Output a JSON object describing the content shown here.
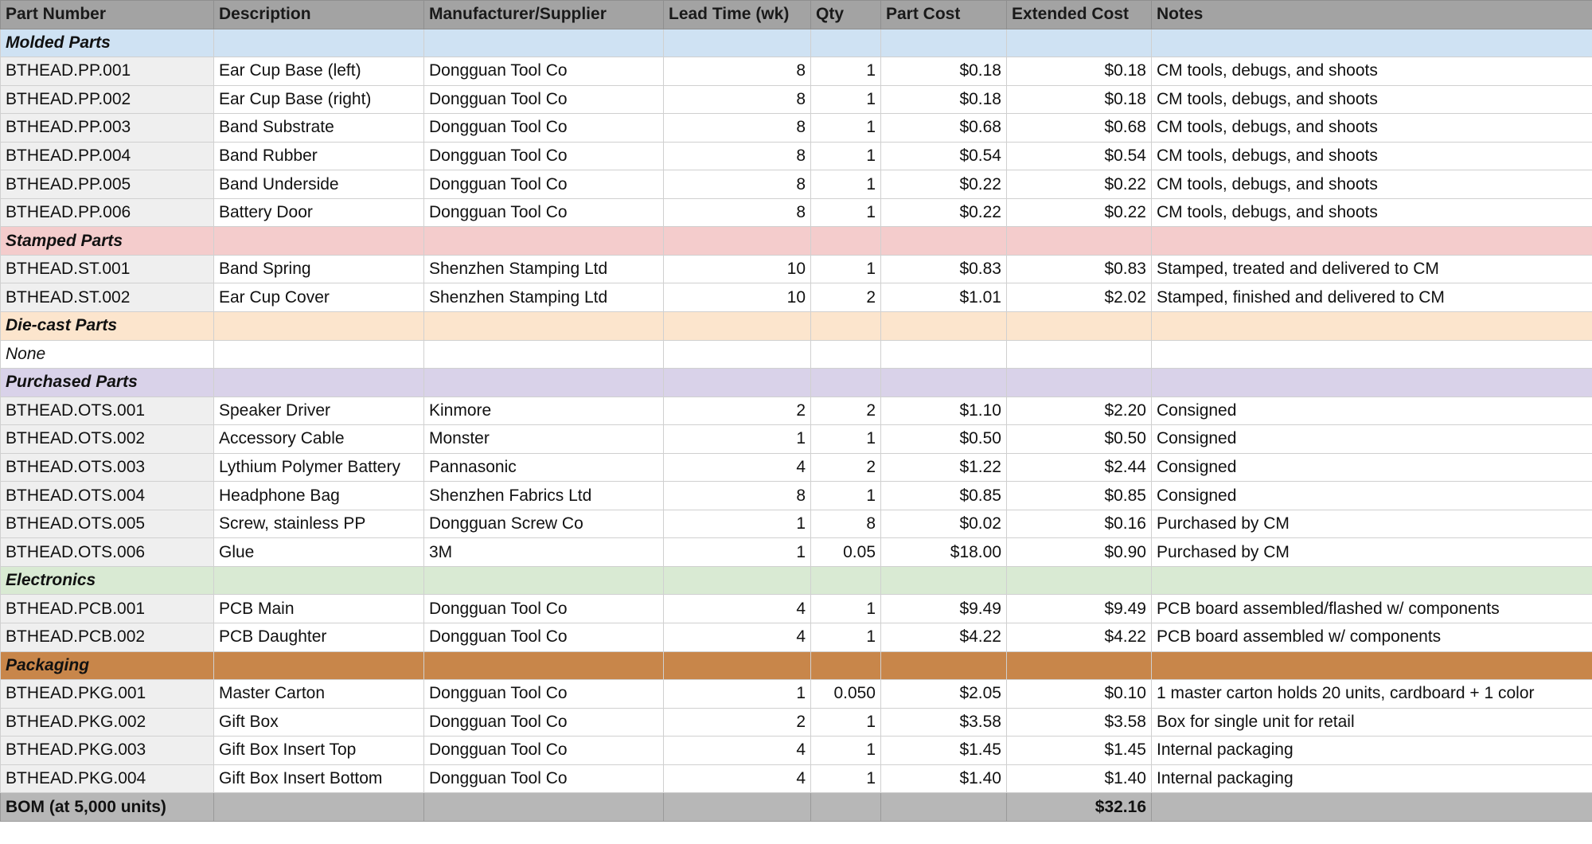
{
  "table": {
    "header": [
      "Part Number",
      "Description",
      "Manufacturer/Supplier",
      "Lead Time (wk)",
      "Qty",
      "Part Cost",
      "Extended Cost",
      "Notes"
    ],
    "sections": [
      {
        "title": "Molded Parts",
        "color": "#cfe2f3",
        "rows": [
          [
            "BTHEAD.PP.001",
            "Ear Cup Base (left)",
            "Dongguan Tool Co",
            "8",
            "1",
            "$0.18",
            "$0.18",
            "CM tools, debugs, and shoots"
          ],
          [
            "BTHEAD.PP.002",
            "Ear Cup Base (right)",
            "Dongguan Tool Co",
            "8",
            "1",
            "$0.18",
            "$0.18",
            "CM tools, debugs, and shoots"
          ],
          [
            "BTHEAD.PP.003",
            "Band Substrate",
            "Dongguan Tool Co",
            "8",
            "1",
            "$0.68",
            "$0.68",
            "CM tools, debugs, and shoots"
          ],
          [
            "BTHEAD.PP.004",
            "Band Rubber",
            "Dongguan Tool Co",
            "8",
            "1",
            "$0.54",
            "$0.54",
            "CM tools, debugs, and shoots"
          ],
          [
            "BTHEAD.PP.005",
            "Band Underside",
            "Dongguan Tool Co",
            "8",
            "1",
            "$0.22",
            "$0.22",
            "CM tools, debugs, and shoots"
          ],
          [
            "BTHEAD.PP.006",
            "Battery Door",
            "Dongguan Tool Co",
            "8",
            "1",
            "$0.22",
            "$0.22",
            "CM tools, debugs, and shoots"
          ]
        ]
      },
      {
        "title": "Stamped Parts",
        "color": "#f4cccc",
        "rows": [
          [
            "BTHEAD.ST.001",
            "Band Spring",
            "Shenzhen Stamping Ltd",
            "10",
            "1",
            "$0.83",
            "$0.83",
            "Stamped, treated and delivered to CM"
          ],
          [
            "BTHEAD.ST.002",
            "Ear Cup Cover",
            "Shenzhen Stamping Ltd",
            "10",
            "2",
            "$1.01",
            "$2.02",
            "Stamped, finished and delivered to CM"
          ]
        ]
      },
      {
        "title": "Die-cast Parts",
        "color": "#fce5cd",
        "rows": [
          [
            "None"
          ]
        ]
      },
      {
        "title": "Purchased Parts",
        "color": "#d9d2e9",
        "rows": [
          [
            "BTHEAD.OTS.001",
            "Speaker Driver",
            "Kinmore",
            "2",
            "2",
            "$1.10",
            "$2.20",
            "Consigned"
          ],
          [
            "BTHEAD.OTS.002",
            "Accessory Cable",
            "Monster",
            "1",
            "1",
            "$0.50",
            "$0.50",
            "Consigned"
          ],
          [
            "BTHEAD.OTS.003",
            "Lythium Polymer Battery",
            "Pannasonic",
            "4",
            "2",
            "$1.22",
            "$2.44",
            "Consigned"
          ],
          [
            "BTHEAD.OTS.004",
            "Headphone Bag",
            "Shenzhen Fabrics Ltd",
            "8",
            "1",
            "$0.85",
            "$0.85",
            "Consigned"
          ],
          [
            "BTHEAD.OTS.005",
            "Screw, stainless PP",
            "Dongguan Screw Co",
            "1",
            "8",
            "$0.02",
            "$0.16",
            "Purchased by CM"
          ],
          [
            "BTHEAD.OTS.006",
            "Glue",
            "3M",
            "1",
            "0.05",
            "$18.00",
            "$0.90",
            "Purchased by CM"
          ]
        ]
      },
      {
        "title": "Electronics",
        "color": "#d9ead3",
        "rows": [
          [
            "BTHEAD.PCB.001",
            "PCB Main",
            "Dongguan Tool Co",
            "4",
            "1",
            "$9.49",
            "$9.49",
            "PCB board assembled/flashed w/ components"
          ],
          [
            "BTHEAD.PCB.002",
            "PCB Daughter",
            "Dongguan Tool Co",
            "4",
            "1",
            "$4.22",
            "$4.22",
            "PCB board assembled w/ components"
          ]
        ]
      },
      {
        "title": "Packaging",
        "color": "#c8864a",
        "rows": [
          [
            "BTHEAD.PKG.001",
            "Master Carton",
            "Dongguan Tool Co",
            "1",
            "0.050",
            "$2.05",
            "$0.10",
            "1 master carton holds 20 units, cardboard + 1 color"
          ],
          [
            "BTHEAD.PKG.002",
            "Gift Box",
            "Dongguan Tool Co",
            "2",
            "1",
            "$3.58",
            "$3.58",
            "Box for single unit for retail"
          ],
          [
            "BTHEAD.PKG.003",
            "Gift Box Insert Top",
            "Dongguan Tool Co",
            "4",
            "1",
            "$1.45",
            "$1.45",
            "Internal packaging"
          ],
          [
            "BTHEAD.PKG.004",
            "Gift Box Insert Bottom",
            "Dongguan Tool Co",
            "4",
            "1",
            "$1.40",
            "$1.40",
            "Internal packaging"
          ]
        ]
      }
    ],
    "total": {
      "label": "BOM (at 5,000 units)",
      "value": "$32.16"
    }
  }
}
